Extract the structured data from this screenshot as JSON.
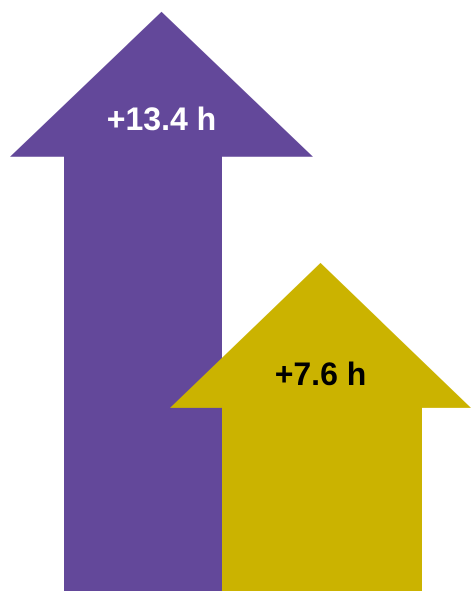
{
  "chart_data": {
    "type": "bar",
    "style": "upward-arrows",
    "series": [
      {
        "label": "+13.4 h",
        "value": 13.4,
        "color": "#63489a",
        "label_color": "#ffffff"
      },
      {
        "label": "+7.6 h",
        "value": 7.6,
        "color": "#cbb300",
        "label_color": "#000000"
      }
    ]
  }
}
